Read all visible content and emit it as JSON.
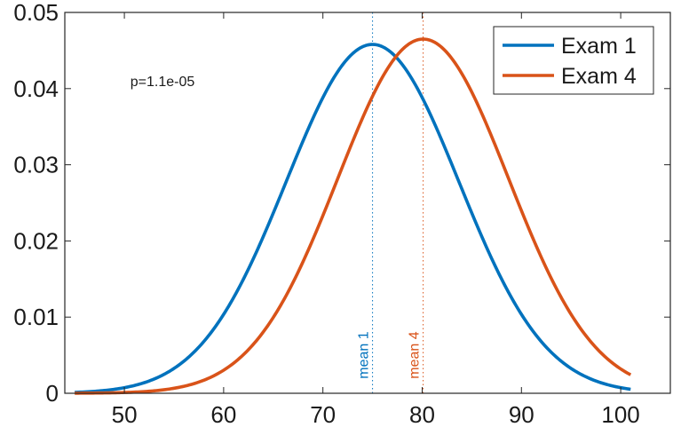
{
  "chart_data": {
    "type": "line",
    "xlim": [
      44,
      105
    ],
    "ylim": [
      0,
      0.05
    ],
    "xticks": [
      50,
      60,
      70,
      80,
      90,
      100
    ],
    "yticks": [
      0,
      0.01,
      0.02,
      0.03,
      0.04,
      0.05
    ],
    "xtick_labels": [
      "50",
      "60",
      "70",
      "80",
      "90",
      "100"
    ],
    "ytick_labels": [
      "0",
      "0.01",
      "0.02",
      "0.03",
      "0.04",
      "0.05"
    ],
    "x_range": [
      45,
      101
    ],
    "grid": false,
    "legend_position": "top-right",
    "series": [
      {
        "name": "Exam 1",
        "distribution": "normal",
        "mean": 75,
        "std": 8.7,
        "peak": 0.0458,
        "color": "#0072BD"
      },
      {
        "name": "Exam 4",
        "distribution": "normal",
        "mean": 80.1,
        "std": 8.6,
        "peak": 0.0465,
        "color": "#D95319"
      }
    ],
    "mean_lines": [
      {
        "label": "mean 1",
        "x": 75,
        "color": "#0072BD"
      },
      {
        "label": "mean 4",
        "x": 80.1,
        "color": "#D95319"
      }
    ],
    "annotation": {
      "text": "p=1.1e-05",
      "x": 50.6,
      "y": 0.0403
    }
  }
}
